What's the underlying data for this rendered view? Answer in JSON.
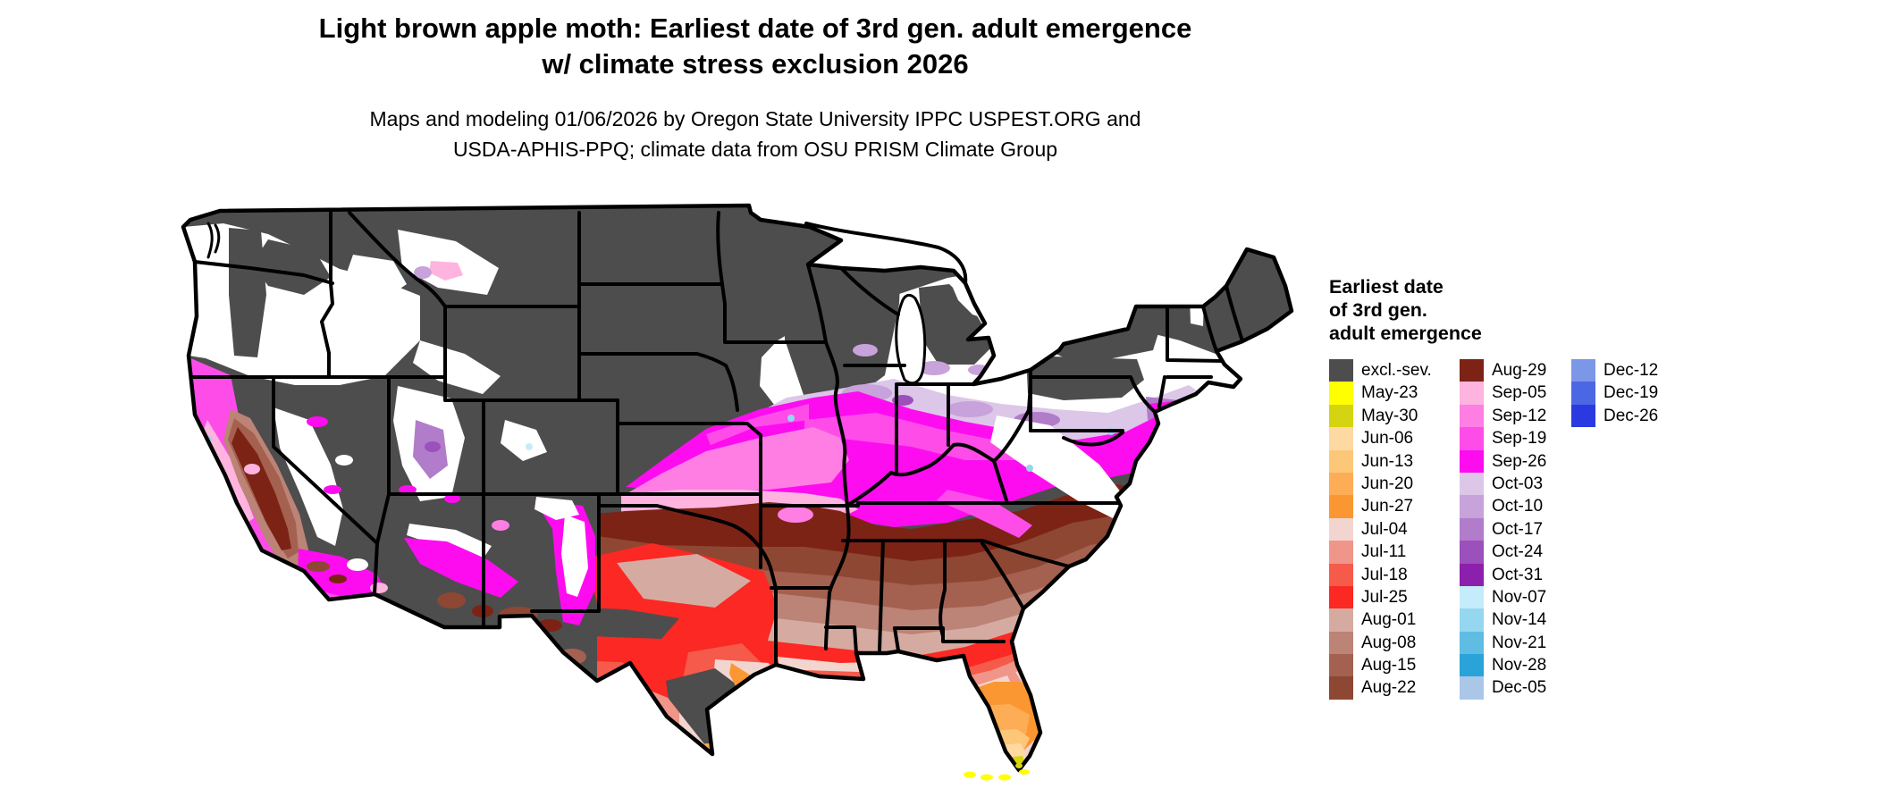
{
  "header": {
    "title_line1": "Light brown apple moth: Earliest date of 3rd gen. adult emergence",
    "title_line2": "w/ climate stress exclusion 2026",
    "subtitle_line1": "Maps and modeling 01/06/2026 by Oregon State University IPPC USPEST.ORG and",
    "subtitle_line2": "USDA-APHIS-PPQ; climate data from OSU PRISM Climate Group"
  },
  "legend": {
    "title_lines": [
      "Earliest date",
      "of 3rd gen.",
      "adult emergence"
    ],
    "columns": [
      {
        "items": [
          {
            "key": "excl",
            "label": "excl.-sev."
          },
          {
            "key": "may23",
            "label": "May-23"
          },
          {
            "key": "may30",
            "label": "May-30"
          },
          {
            "key": "jun06",
            "label": "Jun-06"
          },
          {
            "key": "jun13",
            "label": "Jun-13"
          },
          {
            "key": "jun20",
            "label": "Jun-20"
          },
          {
            "key": "jun27",
            "label": "Jun-27"
          },
          {
            "key": "jul04",
            "label": "Jul-04"
          },
          {
            "key": "jul11",
            "label": "Jul-11"
          },
          {
            "key": "jul18",
            "label": "Jul-18"
          },
          {
            "key": "jul25",
            "label": "Jul-25"
          },
          {
            "key": "aug01",
            "label": "Aug-01"
          },
          {
            "key": "aug08",
            "label": "Aug-08"
          },
          {
            "key": "aug15",
            "label": "Aug-15"
          },
          {
            "key": "aug22",
            "label": "Aug-22"
          }
        ]
      },
      {
        "items": [
          {
            "key": "aug29",
            "label": "Aug-29"
          },
          {
            "key": "sep05",
            "label": "Sep-05"
          },
          {
            "key": "sep12",
            "label": "Sep-12"
          },
          {
            "key": "sep19",
            "label": "Sep-19"
          },
          {
            "key": "sep26",
            "label": "Sep-26"
          },
          {
            "key": "oct03",
            "label": "Oct-03"
          },
          {
            "key": "oct10",
            "label": "Oct-10"
          },
          {
            "key": "oct17",
            "label": "Oct-17"
          },
          {
            "key": "oct24",
            "label": "Oct-24"
          },
          {
            "key": "oct31",
            "label": "Oct-31"
          },
          {
            "key": "nov07",
            "label": "Nov-07"
          },
          {
            "key": "nov14",
            "label": "Nov-14"
          },
          {
            "key": "nov21",
            "label": "Nov-21"
          },
          {
            "key": "nov28",
            "label": "Nov-28"
          },
          {
            "key": "dec05",
            "label": "Dec-05"
          }
        ]
      },
      {
        "items": [
          {
            "key": "dec12",
            "label": "Dec-12"
          },
          {
            "key": "dec19",
            "label": "Dec-19"
          },
          {
            "key": "dec26",
            "label": "Dec-26"
          }
        ]
      }
    ]
  },
  "palette": {
    "excl": "#4d4d4d",
    "may23": "#ffff00",
    "may30": "#d5d411",
    "jun06": "#fed9a2",
    "jun13": "#fdc779",
    "jun20": "#fdad55",
    "jun27": "#fb9732",
    "jul04": "#f3d5cf",
    "jul11": "#f0958a",
    "jul18": "#f55a4b",
    "jul25": "#fb2823",
    "aug01": "#d5aba1",
    "aug08": "#bc8377",
    "aug15": "#a46150",
    "aug22": "#8e4733",
    "aug29": "#7c2315",
    "sep05": "#feb4df",
    "sep12": "#fe7ee4",
    "sep19": "#fe4ce9",
    "sep26": "#fe0cf0",
    "oct03": "#dcc7e8",
    "oct10": "#c8a2da",
    "oct17": "#b17cca",
    "oct24": "#9b50bb",
    "oct31": "#8c1fab",
    "nov07": "#c5ecfa",
    "nov14": "#95d6f0",
    "nov21": "#5fbde4",
    "nov28": "#2aa3d8",
    "dec05": "#aac7e8",
    "dec12": "#7d97e8",
    "dec19": "#4c67e4",
    "dec26": "#2a3ae0",
    "nodata": "#ffffff",
    "border": "#000000",
    "background": "#ffffff"
  }
}
